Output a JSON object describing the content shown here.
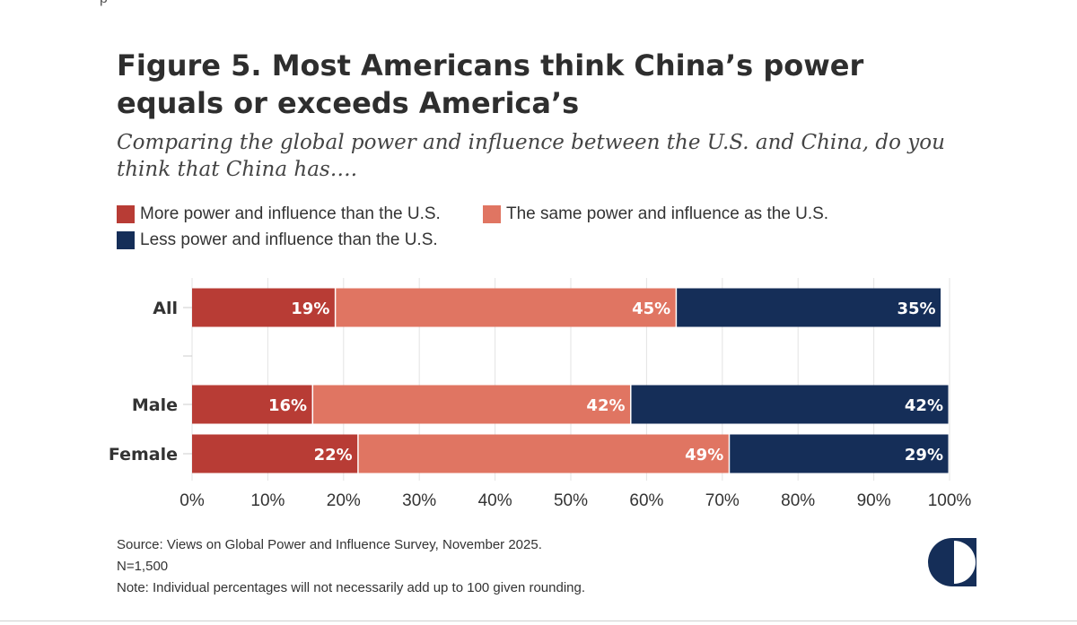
{
  "title": "Figure 5. Most Americans think China’s power equals or exceeds America’s",
  "subtitle": "Comparing the global power and influence between the U.S. and China, do you think that China has….",
  "legend": [
    {
      "label": "More power and influence than the U.S.",
      "color": "#b83c35"
    },
    {
      "label": "The same power and influence as the U.S.",
      "color": "#e07562"
    },
    {
      "label": "Less power and influence than the U.S.",
      "color": "#152e58"
    }
  ],
  "chart_data": {
    "type": "bar",
    "orientation": "horizontal",
    "stacked": true,
    "categories": [
      "All",
      "Male",
      "Female"
    ],
    "series": [
      {
        "name": "More power and influence than the U.S.",
        "values": [
          19,
          16,
          22
        ],
        "labels": [
          "19%",
          "16%",
          "22%"
        ],
        "color": "#b83c35"
      },
      {
        "name": "The same power and influence as the U.S.",
        "values": [
          45,
          42,
          49
        ],
        "labels": [
          "45%",
          "42%",
          "49%"
        ],
        "color": "#e07562"
      },
      {
        "name": "Less power and influence than the U.S.",
        "values": [
          35,
          42,
          29
        ],
        "labels": [
          "35%",
          "42%",
          "29%"
        ],
        "color": "#152e58"
      }
    ],
    "xlim": [
      0,
      100
    ],
    "xticks": [
      "0%",
      "10%",
      "20%",
      "30%",
      "40%",
      "50%",
      "60%",
      "70%",
      "80%",
      "90%",
      "100%"
    ],
    "grid": true,
    "legend_position": "top"
  },
  "footer": {
    "source": "Source: Views on Global Power and Influence Survey, November 2025.",
    "n": "N=1,500",
    "note": "Note: Individual percentages will not necessarily add up to 100 given rounding."
  }
}
